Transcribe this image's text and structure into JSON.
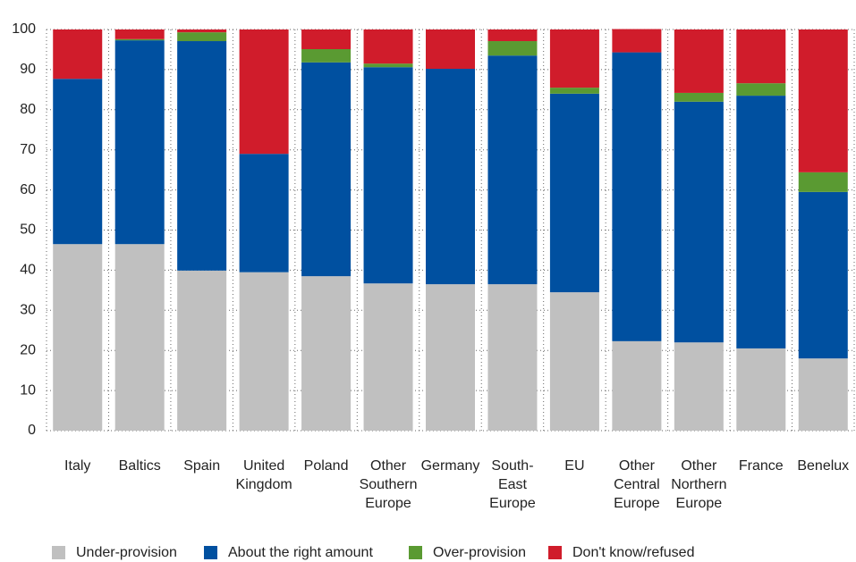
{
  "chart_data": {
    "type": "stacked_bar",
    "categories": [
      "Italy",
      "Baltics",
      "Spain",
      "United Kingdom",
      "Poland",
      "Other Southern Europe",
      "Germany",
      "South-East Europe",
      "EU",
      "Other Central Europe",
      "Other Northern Europe",
      "France",
      "Benelux"
    ],
    "series": [
      {
        "name": "Under-provision",
        "color": "#c0c0c0",
        "values": [
          46.5,
          46.5,
          39.9,
          39.5,
          38.5,
          36.7,
          36.5,
          36.5,
          34.5,
          22.3,
          22,
          20.5,
          18
        ]
      },
      {
        "name": "About the right amount",
        "color": "#0050a0",
        "values": [
          41.2,
          50.8,
          57.2,
          29.5,
          53.3,
          53.9,
          53.7,
          57,
          49.5,
          72,
          60,
          63,
          41.5
        ]
      },
      {
        "name": "Over-provision",
        "color": "#5a9a32",
        "values": [
          0,
          0.3,
          2.2,
          0,
          3.3,
          0.9,
          0,
          3.6,
          1.5,
          0,
          2.2,
          3.1,
          4.9
        ]
      },
      {
        "name": "Don't know/refused",
        "color": "#d01c2b",
        "values": [
          12.3,
          2.4,
          0.7,
          31,
          4.9,
          8.5,
          9.8,
          2.9,
          14.5,
          5.8,
          15.8,
          13.4,
          35.6
        ]
      }
    ],
    "ylim": [
      0,
      100
    ],
    "yticks": [
      0,
      10,
      20,
      30,
      40,
      50,
      60,
      70,
      80,
      90,
      100
    ],
    "grid": true
  }
}
